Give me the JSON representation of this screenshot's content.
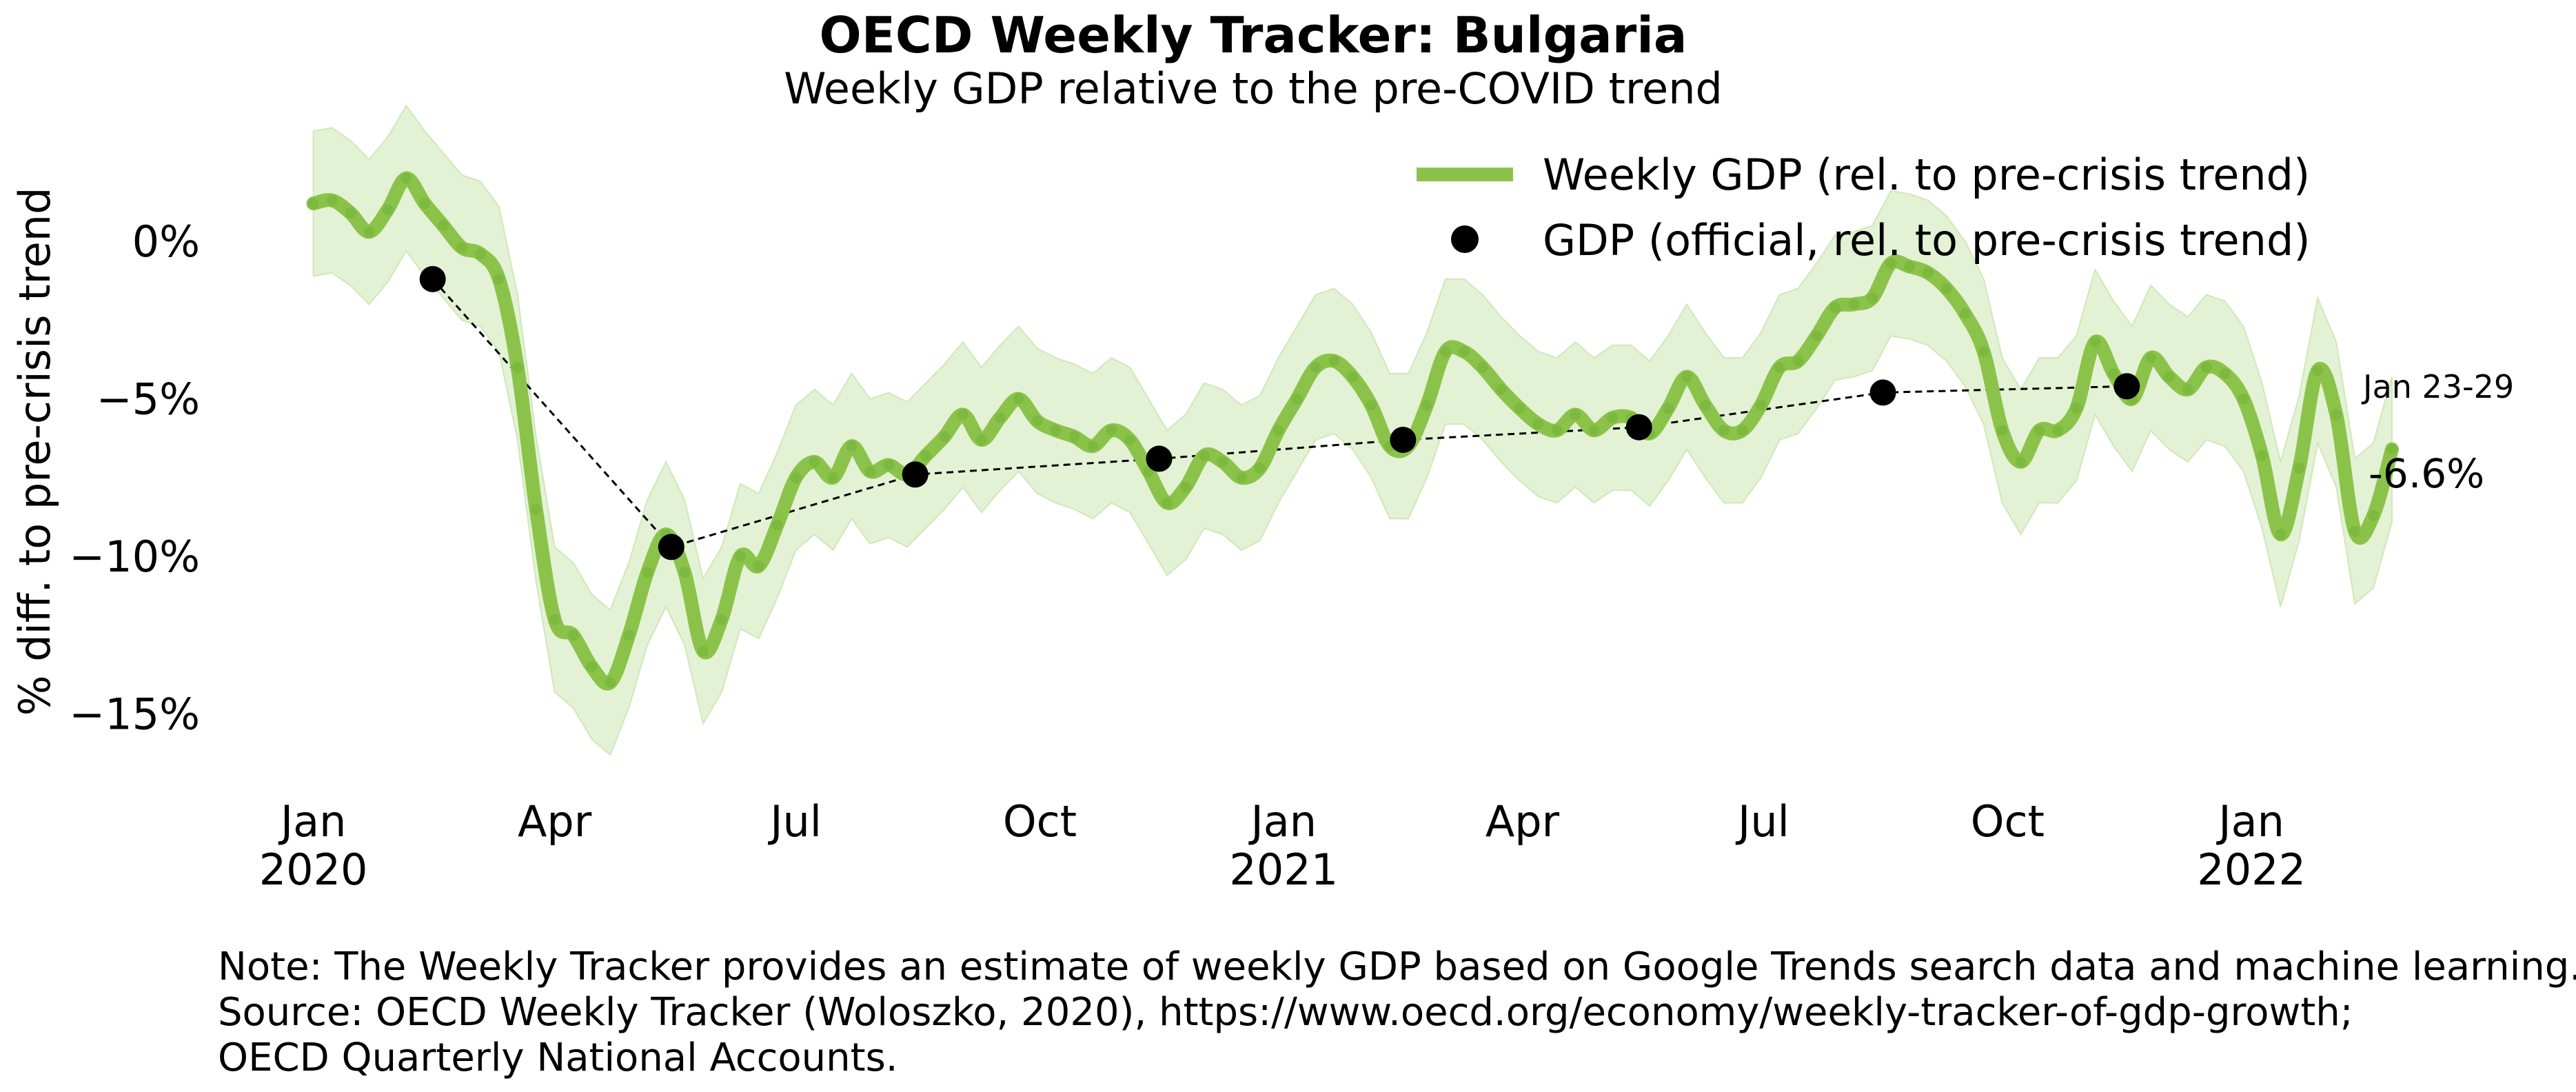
{
  "chart_data": {
    "type": "line",
    "title": "OECD Weekly Tracker: Bulgaria",
    "subtitle": "Weekly GDP relative to the pre-COVID trend",
    "ylabel": "% diff. to pre-crisis trend",
    "xlabel": "",
    "ylim": [
      -17.5,
      3.5
    ],
    "xlim": [
      "2019-12-23",
      "2022-02-10"
    ],
    "grid": false,
    "legend_position": "top-right",
    "y_ticks": [
      {
        "value": 0,
        "label": "0%"
      },
      {
        "value": -5,
        "label": "−5%"
      },
      {
        "value": -10,
        "label": "−10%"
      },
      {
        "value": -15,
        "label": "−15%"
      }
    ],
    "x_ticks": [
      {
        "date": "2020-01-01",
        "line1": "Jan",
        "line2": "2020"
      },
      {
        "date": "2020-04-01",
        "line1": "Apr",
        "line2": ""
      },
      {
        "date": "2020-07-01",
        "line1": "Jul",
        "line2": ""
      },
      {
        "date": "2020-10-01",
        "line1": "Oct",
        "line2": ""
      },
      {
        "date": "2021-01-01",
        "line1": "Jan",
        "line2": "2021"
      },
      {
        "date": "2021-04-01",
        "line1": "Apr",
        "line2": ""
      },
      {
        "date": "2021-07-01",
        "line1": "Jul",
        "line2": ""
      },
      {
        "date": "2021-10-01",
        "line1": "Oct",
        "line2": ""
      },
      {
        "date": "2022-01-01",
        "line1": "Jan",
        "line2": "2022"
      }
    ],
    "series": [
      {
        "name": "Weekly GDP (rel. to pre-crisis trend)",
        "color": "#8bc34a",
        "band_color": "#e3f2d4",
        "band_halfwidth": 2.3,
        "points": [
          [
            "2020-01-01",
            1.2
          ],
          [
            "2020-01-08",
            1.3
          ],
          [
            "2020-01-15",
            0.9
          ],
          [
            "2020-01-22",
            0.3
          ],
          [
            "2020-01-29",
            1.0
          ],
          [
            "2020-02-05",
            2.0
          ],
          [
            "2020-02-12",
            1.2
          ],
          [
            "2020-02-19",
            0.5
          ],
          [
            "2020-02-26",
            -0.2
          ],
          [
            "2020-03-04",
            -0.4
          ],
          [
            "2020-03-11",
            -1.2
          ],
          [
            "2020-03-18",
            -4.0
          ],
          [
            "2020-03-25",
            -8.5
          ],
          [
            "2020-04-01",
            -12.0
          ],
          [
            "2020-04-08",
            -12.5
          ],
          [
            "2020-04-15",
            -13.5
          ],
          [
            "2020-04-22",
            -14.0
          ],
          [
            "2020-04-29",
            -12.5
          ],
          [
            "2020-05-06",
            -10.5
          ],
          [
            "2020-05-13",
            -9.3
          ],
          [
            "2020-05-20",
            -10.5
          ],
          [
            "2020-05-27",
            -13.0
          ],
          [
            "2020-06-03",
            -12.0
          ],
          [
            "2020-06-10",
            -10.0
          ],
          [
            "2020-06-17",
            -10.3
          ],
          [
            "2020-06-24",
            -9.0
          ],
          [
            "2020-07-01",
            -7.5
          ],
          [
            "2020-07-08",
            -7.0
          ],
          [
            "2020-07-15",
            -7.5
          ],
          [
            "2020-07-22",
            -6.5
          ],
          [
            "2020-07-29",
            -7.3
          ],
          [
            "2020-08-05",
            -7.1
          ],
          [
            "2020-08-12",
            -7.4
          ],
          [
            "2020-08-19",
            -6.8
          ],
          [
            "2020-08-26",
            -6.2
          ],
          [
            "2020-09-02",
            -5.5
          ],
          [
            "2020-09-09",
            -6.3
          ],
          [
            "2020-09-16",
            -5.6
          ],
          [
            "2020-09-23",
            -5.0
          ],
          [
            "2020-09-30",
            -5.7
          ],
          [
            "2020-10-07",
            -6.0
          ],
          [
            "2020-10-14",
            -6.2
          ],
          [
            "2020-10-21",
            -6.5
          ],
          [
            "2020-10-28",
            -6.0
          ],
          [
            "2020-11-04",
            -6.3
          ],
          [
            "2020-11-11",
            -7.3
          ],
          [
            "2020-11-18",
            -8.3
          ],
          [
            "2020-11-25",
            -7.8
          ],
          [
            "2020-12-02",
            -6.8
          ],
          [
            "2020-12-09",
            -7.0
          ],
          [
            "2020-12-16",
            -7.5
          ],
          [
            "2020-12-23",
            -7.2
          ],
          [
            "2020-12-30",
            -6.0
          ],
          [
            "2021-01-06",
            -5.0
          ],
          [
            "2021-01-13",
            -4.0
          ],
          [
            "2021-01-20",
            -3.8
          ],
          [
            "2021-01-27",
            -4.3
          ],
          [
            "2021-02-03",
            -5.2
          ],
          [
            "2021-02-10",
            -6.5
          ],
          [
            "2021-02-17",
            -6.5
          ],
          [
            "2021-02-24",
            -5.2
          ],
          [
            "2021-03-03",
            -3.5
          ],
          [
            "2021-03-10",
            -3.5
          ],
          [
            "2021-03-17",
            -4.0
          ],
          [
            "2021-03-24",
            -4.7
          ],
          [
            "2021-03-31",
            -5.3
          ],
          [
            "2021-04-07",
            -5.8
          ],
          [
            "2021-04-14",
            -6.0
          ],
          [
            "2021-04-21",
            -5.5
          ],
          [
            "2021-04-28",
            -6.0
          ],
          [
            "2021-05-05",
            -5.6
          ],
          [
            "2021-05-12",
            -5.6
          ],
          [
            "2021-05-19",
            -6.1
          ],
          [
            "2021-05-26",
            -5.3
          ],
          [
            "2021-06-02",
            -4.3
          ],
          [
            "2021-06-09",
            -5.2
          ],
          [
            "2021-06-16",
            -6.0
          ],
          [
            "2021-06-23",
            -6.0
          ],
          [
            "2021-06-30",
            -5.2
          ],
          [
            "2021-07-07",
            -4.0
          ],
          [
            "2021-07-14",
            -3.8
          ],
          [
            "2021-07-21",
            -3.0
          ],
          [
            "2021-07-28",
            -2.1
          ],
          [
            "2021-08-04",
            -2.0
          ],
          [
            "2021-08-11",
            -1.8
          ],
          [
            "2021-08-18",
            -0.7
          ],
          [
            "2021-08-25",
            -0.8
          ],
          [
            "2021-09-01",
            -1.0
          ],
          [
            "2021-09-08",
            -1.5
          ],
          [
            "2021-09-15",
            -2.3
          ],
          [
            "2021-09-22",
            -3.5
          ],
          [
            "2021-09-29",
            -6.0
          ],
          [
            "2021-10-06",
            -7.0
          ],
          [
            "2021-10-13",
            -6.0
          ],
          [
            "2021-10-20",
            -6.0
          ],
          [
            "2021-10-27",
            -5.3
          ],
          [
            "2021-11-03",
            -3.2
          ],
          [
            "2021-11-10",
            -4.2
          ],
          [
            "2021-11-17",
            -5.0
          ],
          [
            "2021-11-24",
            -3.7
          ],
          [
            "2021-12-01",
            -4.3
          ],
          [
            "2021-12-08",
            -4.7
          ],
          [
            "2021-12-15",
            -4.0
          ],
          [
            "2021-12-22",
            -4.2
          ],
          [
            "2021-12-29",
            -5.0
          ],
          [
            "2022-01-05",
            -6.8
          ],
          [
            "2022-01-12",
            -9.3
          ],
          [
            "2022-01-19",
            -7.2
          ],
          [
            "2022-01-26",
            -4.1
          ],
          [
            "2022-02-02",
            -5.5
          ],
          [
            "2022-02-09",
            -9.2
          ],
          [
            "2022-02-16",
            -8.7
          ],
          [
            "2022-02-23",
            -6.6
          ]
        ]
      },
      {
        "name": "GDP (official, rel. to pre-crisis trend)",
        "color": "#000000",
        "line_style": "dashed",
        "points": [
          [
            "2020-02-15",
            -1.2
          ],
          [
            "2020-05-15",
            -9.7
          ],
          [
            "2020-08-15",
            -7.4
          ],
          [
            "2020-11-15",
            -6.9
          ],
          [
            "2021-02-15",
            -6.3
          ],
          [
            "2021-05-15",
            -5.9
          ],
          [
            "2021-08-15",
            -4.8
          ],
          [
            "2021-11-15",
            -4.6
          ]
        ]
      }
    ],
    "end_annotation": {
      "period": "Jan 23-29",
      "value_label": "-6.6%"
    }
  },
  "note": {
    "line1": "Note: The Weekly Tracker provides an estimate of weekly GDP based on Google Trends search data and machine learning.",
    "line2": "Source: OECD Weekly Tracker (Woloszko, 2020), https://www.oecd.org/economy/weekly-tracker-of-gdp-growth;",
    "line3": "OECD Quarterly National Accounts."
  }
}
